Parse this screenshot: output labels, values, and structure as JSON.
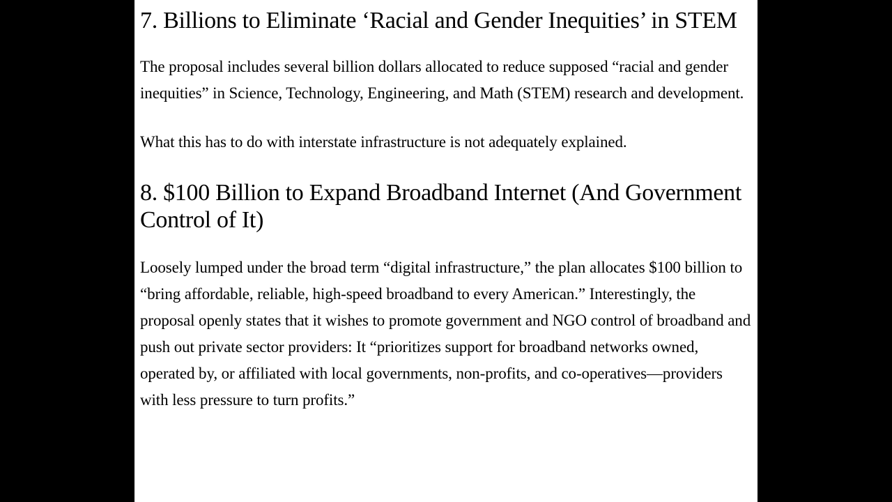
{
  "document": {
    "background_color": "#000000",
    "page_background_color": "#ffffff",
    "text_color": "#000000",
    "font_family": "Georgia, Times New Roman, serif",
    "sections": [
      {
        "heading": "7. Billions to Eliminate ‘Racial and Gender Inequities’ in STEM",
        "heading_fontsize": 34,
        "paragraphs": [
          "The proposal includes several billion dollars allocated to reduce supposed “racial and gender inequities” in Science, Technology, Engineering, and Math (STEM) research and development.",
          "What this has to do with interstate infrastructure is not adequately explained."
        ],
        "paragraph_fontsize": 23
      },
      {
        "heading": "8. $100 Billion to Expand Broadband Internet (And Government Control of It)",
        "heading_fontsize": 34,
        "paragraphs": [
          "Loosely lumped under the broad term “digital infrastructure,” the plan allocates $100 billion to “bring affordable, reliable, high-speed broadband to every American.” Interestingly, the proposal openly states that it wishes to promote government and NGO control of broadband and push out private sector providers: It “prioritizes support for broadband networks owned, operated by, or affiliated with local governments, non-profits, and co-operatives—providers with less pressure to turn profits.”"
        ],
        "paragraph_fontsize": 23
      }
    ]
  }
}
